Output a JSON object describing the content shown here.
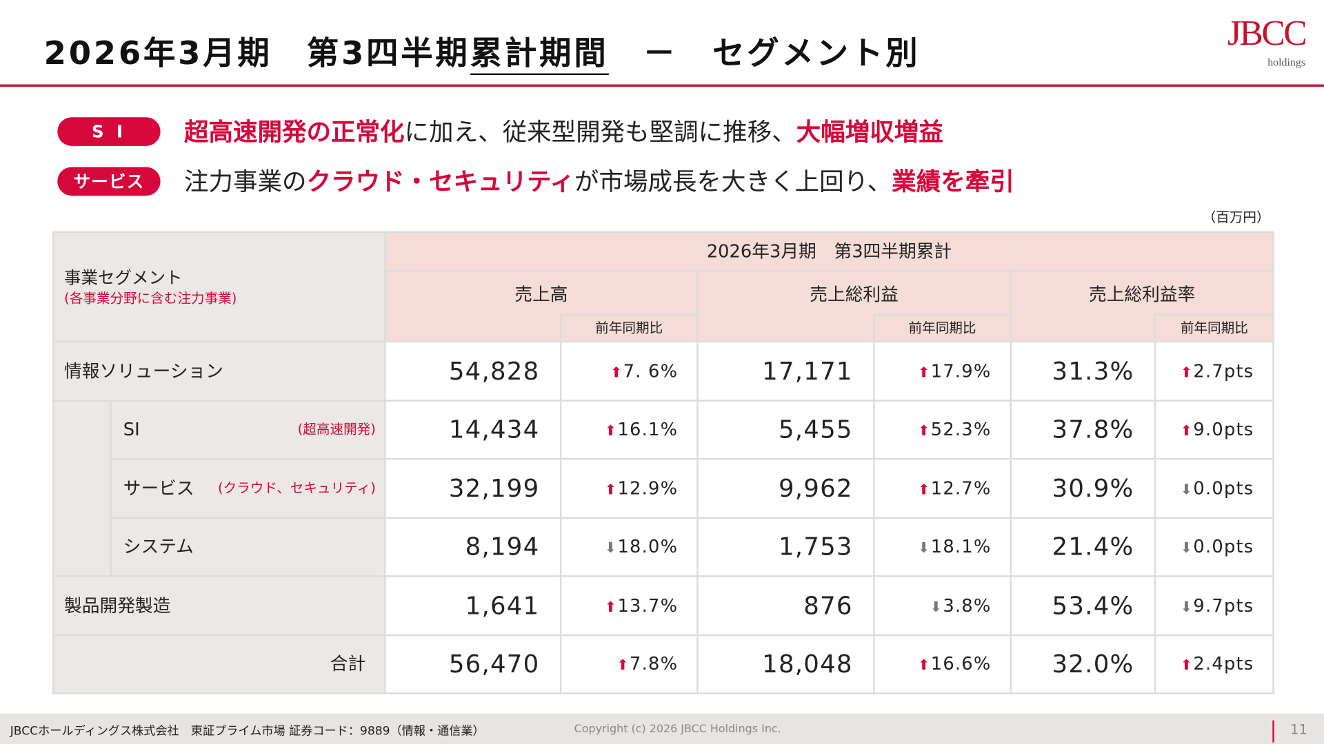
{
  "title": {
    "pre": "2026年3月期　第3四半期",
    "under": "累計期間",
    "post": "　－　セグメント別"
  },
  "logo": {
    "main": "JBCC",
    "sub": "holdings"
  },
  "highlights": [
    {
      "badge": "S I",
      "parts": [
        {
          "t": "超高速開発の正常化",
          "red": true
        },
        {
          "t": "に加え、従来型開発も堅調に推移、",
          "red": false
        },
        {
          "t": "大幅増収増益",
          "red": true
        }
      ]
    },
    {
      "badge": "サービス",
      "parts": [
        {
          "t": "注力事業の",
          "red": false
        },
        {
          "t": "クラウド・セキュリティ",
          "red": true
        },
        {
          "t": "が市場成長を大きく上回り、",
          "red": false
        },
        {
          "t": "業績を牽引",
          "red": true
        }
      ]
    }
  ],
  "unit": "（百万円）",
  "table": {
    "segment_header": "事業セグメント",
    "segment_note": "(各事業分野に含む注力事業)",
    "period": "2026年3月期　第3四半期累計",
    "cols": [
      "売上高",
      "売上総利益",
      "売上総利益率"
    ],
    "yoy": "前年同期比",
    "rows": [
      {
        "name": "情報ソリューション",
        "note": "",
        "sub": false,
        "v": [
          {
            "val": "54,828",
            "yoy": "7. 6%",
            "dir": "up"
          },
          {
            "val": "17,171",
            "yoy": "17.9%",
            "dir": "up"
          },
          {
            "val": "31.3%",
            "yoy": "2.7pts",
            "dir": "up"
          }
        ]
      },
      {
        "name": "SI",
        "note": "(超高速開発)",
        "sub": true,
        "v": [
          {
            "val": "14,434",
            "yoy": "16.1%",
            "dir": "up"
          },
          {
            "val": "5,455",
            "yoy": "52.3%",
            "dir": "up"
          },
          {
            "val": "37.8%",
            "yoy": "9.0pts",
            "dir": "up"
          }
        ]
      },
      {
        "name": "サービス",
        "note": "(クラウド、セキュリティ)",
        "sub": true,
        "v": [
          {
            "val": "32,199",
            "yoy": "12.9%",
            "dir": "up"
          },
          {
            "val": "9,962",
            "yoy": "12.7%",
            "dir": "up"
          },
          {
            "val": "30.9%",
            "yoy": "0.0pts",
            "dir": "down"
          }
        ]
      },
      {
        "name": "システム",
        "note": "",
        "sub": true,
        "v": [
          {
            "val": "8,194",
            "yoy": "18.0%",
            "dir": "down"
          },
          {
            "val": "1,753",
            "yoy": "18.1%",
            "dir": "down"
          },
          {
            "val": "21.4%",
            "yoy": "0.0pts",
            "dir": "down"
          }
        ]
      },
      {
        "name": "製品開発製造",
        "note": "",
        "sub": false,
        "v": [
          {
            "val": "1,641",
            "yoy": "13.7%",
            "dir": "up"
          },
          {
            "val": "876",
            "yoy": "3.8%",
            "dir": "down"
          },
          {
            "val": "53.4%",
            "yoy": "9.7pts",
            "dir": "down"
          }
        ]
      },
      {
        "name": "合計",
        "note": "",
        "sub": false,
        "total": true,
        "v": [
          {
            "val": "56,470",
            "yoy": "7.8%",
            "dir": "up"
          },
          {
            "val": "18,048",
            "yoy": "16.6%",
            "dir": "up"
          },
          {
            "val": "32.0%",
            "yoy": "2.4pts",
            "dir": "up"
          }
        ]
      }
    ]
  },
  "footer": {
    "company": "JBCCホールディングス株式会社　東証プライム市場 証券コード：9889（情報・通信業）",
    "copyright": "Copyright (c) 2026 JBCC Holdings Inc.",
    "page": "11"
  },
  "colors": {
    "accent": "#d6083b",
    "header_bg": "#f6dcd7",
    "label_bg": "#ebe8e6",
    "down": "#777777"
  }
}
